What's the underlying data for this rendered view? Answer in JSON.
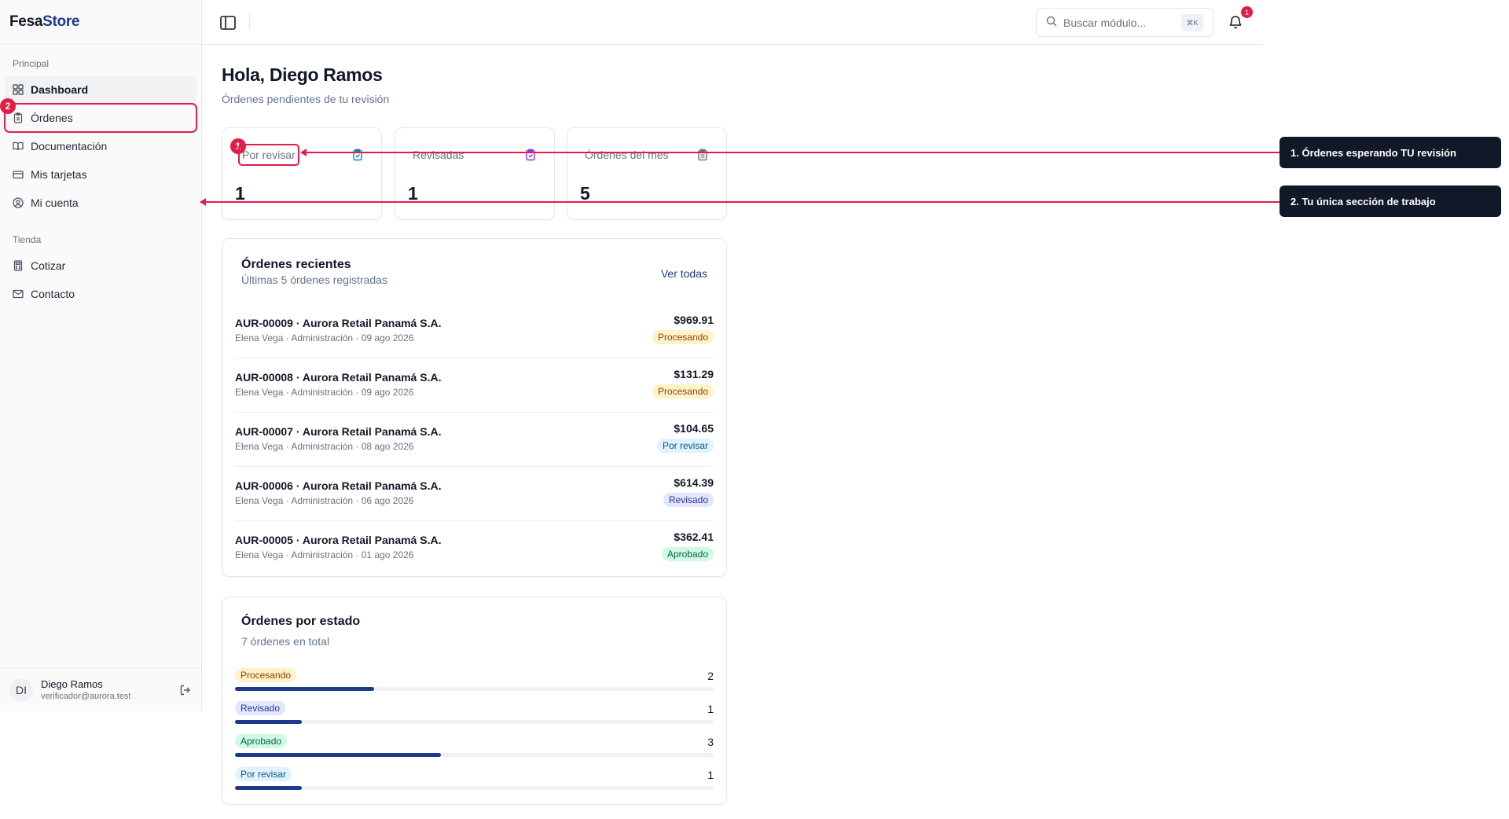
{
  "brand": {
    "part1": "Fesa",
    "part2": "Store"
  },
  "sidebar": {
    "group_principal": "Principal",
    "items_principal": [
      {
        "label": "Dashboard",
        "icon": "dashboard-icon"
      },
      {
        "label": "Órdenes",
        "icon": "clipboard-icon"
      },
      {
        "label": "Documentación",
        "icon": "book-icon"
      },
      {
        "label": "Mis tarjetas",
        "icon": "credit-card-icon"
      },
      {
        "label": "Mi cuenta",
        "icon": "user-circle-icon"
      }
    ],
    "group_tienda": "Tienda",
    "items_tienda": [
      {
        "label": "Cotizar",
        "icon": "calculator-icon"
      },
      {
        "label": "Contacto",
        "icon": "mail-icon"
      }
    ],
    "user": {
      "initials": "DI",
      "name": "Diego Ramos",
      "email": "verificador@aurora.test"
    }
  },
  "topbar": {
    "search_placeholder": "Buscar módulo...",
    "search_shortcut": "⌘K",
    "notifications_count": "1"
  },
  "main": {
    "greeting": "Hola, Diego Ramos",
    "subtitle": "Órdenes pendientes de tu revisión",
    "stats": [
      {
        "label": "Por revisar",
        "value": "1",
        "icon": "clipboard-check-icon",
        "color": "#0284c7"
      },
      {
        "label": "Revisadas",
        "value": "1",
        "icon": "clipboard-check-icon",
        "color": "#7c3aed"
      },
      {
        "label": "Órdenes del mes",
        "value": "5",
        "icon": "clipboard-list-icon",
        "color": "#6b7280"
      }
    ],
    "recent": {
      "title": "Órdenes recientes",
      "subtitle": "Últimas 5 órdenes registradas",
      "view_all": "Ver todas",
      "orders": [
        {
          "title": "AUR-00009 · Aurora Retail Panamá S.A.",
          "meta": "Elena Vega · Administración · 09 ago 2026",
          "amount": "$969.91",
          "status": "Procesando"
        },
        {
          "title": "AUR-00008 · Aurora Retail Panamá S.A.",
          "meta": "Elena Vega · Administración · 09 ago 2026",
          "amount": "$131.29",
          "status": "Procesando"
        },
        {
          "title": "AUR-00007 · Aurora Retail Panamá S.A.",
          "meta": "Elena Vega · Administración · 08 ago 2026",
          "amount": "$104.65",
          "status": "Por revisar"
        },
        {
          "title": "AUR-00006 · Aurora Retail Panamá S.A.",
          "meta": "Elena Vega · Administración · 06 ago 2026",
          "amount": "$614.39",
          "status": "Revisado"
        },
        {
          "title": "AUR-00005 · Aurora Retail Panamá S.A.",
          "meta": "Elena Vega · Administración · 01 ago 2026",
          "amount": "$362.41",
          "status": "Aprobado"
        }
      ]
    },
    "by_status": {
      "title": "Órdenes por estado",
      "subtitle": "7 órdenes en total",
      "rows": [
        {
          "status": "Procesando",
          "count": "2",
          "fraction": 0.29
        },
        {
          "status": "Revisado",
          "count": "1",
          "fraction": 0.14
        },
        {
          "status": "Aprobado",
          "count": "3",
          "fraction": 0.43
        },
        {
          "status": "Por revisar",
          "count": "1",
          "fraction": 0.14
        }
      ]
    }
  },
  "status_colors": {
    "Procesando": {
      "bg": "#fef3c7",
      "fg": "#92400e"
    },
    "Por revisar": {
      "bg": "#e0f2fe",
      "fg": "#075985"
    },
    "Revisado": {
      "bg": "#e0e7ff",
      "fg": "#3730a3"
    },
    "Aprobado": {
      "bg": "#d1fae5",
      "fg": "#065f46"
    }
  },
  "annotations": {
    "callout1": "1. Órdenes esperando TU revisión",
    "callout2": "2. Tu única sección de trabajo",
    "marker1": "1",
    "marker2": "2",
    "accent": "#e11d48"
  }
}
